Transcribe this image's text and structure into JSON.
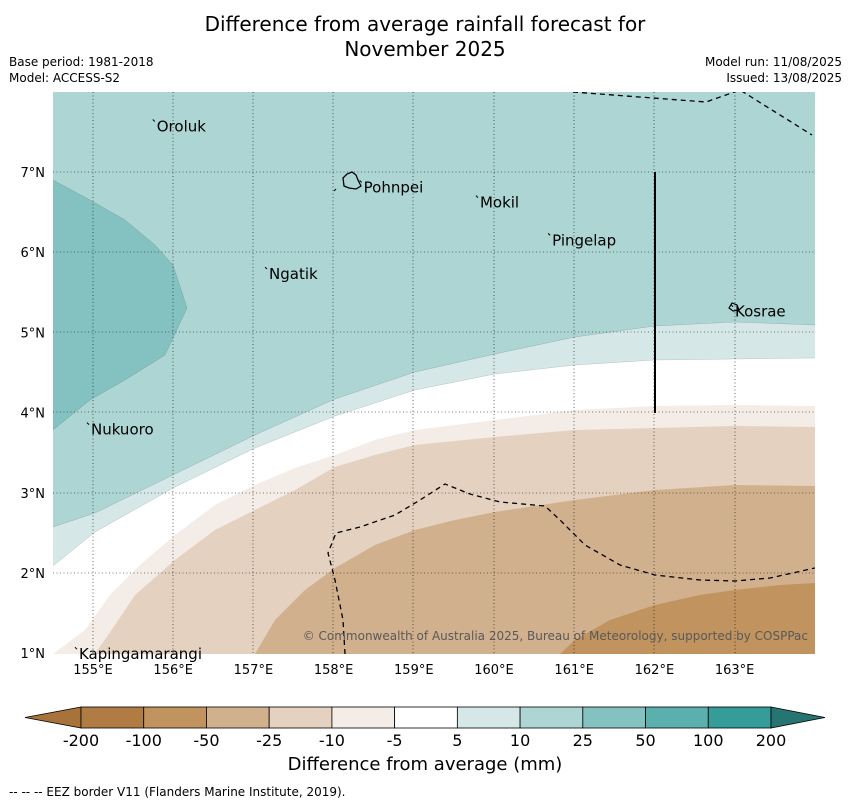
{
  "title_line1": "Difference from average rainfall forecast for",
  "title_line2": "November 2025",
  "meta_left": [
    "Base period: 1981-2018",
    "Model: ACCESS-S2"
  ],
  "meta_right": [
    "Model run: 11/08/2025",
    "Issued: 13/08/2025"
  ],
  "map": {
    "x_ticks": [
      "155°E",
      "156°E",
      "157°E",
      "158°E",
      "159°E",
      "160°E",
      "161°E",
      "162°E",
      "163°E"
    ],
    "y_ticks": [
      "1°N",
      "2°N",
      "3°N",
      "4°N",
      "5°N",
      "6°N",
      "7°N"
    ],
    "places": [
      {
        "name": "Oroluk",
        "lon": 155.77,
        "lat": 7.63
      },
      {
        "name": "Pohnpei",
        "lon": 158.35,
        "lat": 6.87
      },
      {
        "name": "Mokil",
        "lon": 159.8,
        "lat": 6.68
      },
      {
        "name": "Pingelap",
        "lon": 160.7,
        "lat": 6.21
      },
      {
        "name": "Ngatik",
        "lon": 157.17,
        "lat": 5.79
      },
      {
        "name": "Kosrae",
        "lon": 162.98,
        "lat": 5.32
      },
      {
        "name": "Nukuoro",
        "lon": 154.95,
        "lat": 3.85
      },
      {
        "name": "Kapingamarangi",
        "lon": 154.8,
        "lat": 1.05
      }
    ],
    "copyright": "© Commonwealth of Australia 2025, Bureau of Meteorology, supported by COSPPac"
  },
  "colorbar": {
    "labels": [
      "-200",
      "-100",
      "-50",
      "-25",
      "-10",
      "-5",
      "5",
      "10",
      "25",
      "50",
      "100",
      "200"
    ],
    "colors": [
      "#a8733a",
      "#b07c43",
      "#c0935f",
      "#d1b08e",
      "#e4d1bf",
      "#f4ece6",
      "#ffffff",
      "#d5e8e7",
      "#acd5d4",
      "#84c2c1",
      "#5bafad",
      "#369c99",
      "#277572"
    ],
    "title": "Difference from average (mm)"
  },
  "footer": "--  --  -- EEZ border V11 (Flanders Marine Institute, 2019)."
}
